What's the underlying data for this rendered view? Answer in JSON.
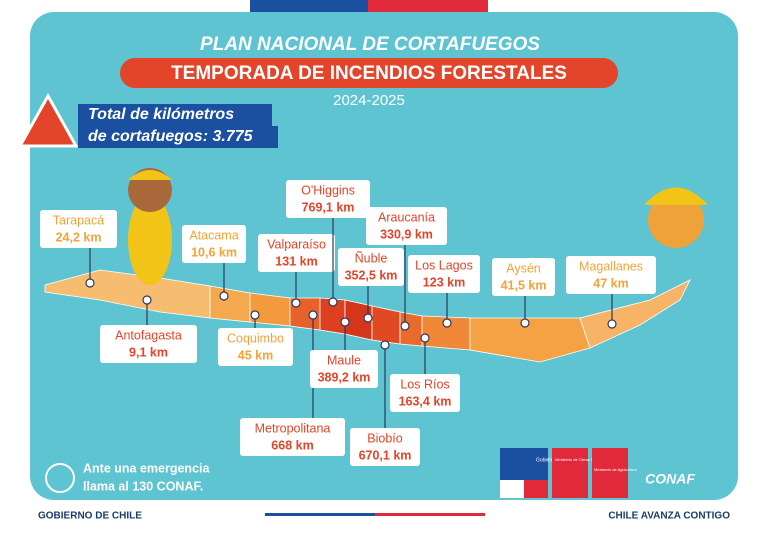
{
  "header": {
    "title": "PLAN NACIONAL DE CORTAFUEGOS",
    "subtitle": "TEMPORADA DE INCENDIOS FORESTALES",
    "season": "2024-2025"
  },
  "total": {
    "line1": "Total de kilómetros",
    "line2": "de cortafuegos: 3.775"
  },
  "regions": [
    {
      "name": "Tarapacá",
      "value": "24,2 km",
      "color": "#f2a43a"
    },
    {
      "name": "Antofagasta",
      "value": "9,1 km",
      "color": "#e2452a"
    },
    {
      "name": "Atacama",
      "value": "10,6 km",
      "color": "#f2a43a"
    },
    {
      "name": "Coquimbo",
      "value": "45 km",
      "color": "#f2a43a"
    },
    {
      "name": "Valparaíso",
      "value": "131 km",
      "color": "#e2452a"
    },
    {
      "name": "O'Higgins",
      "value": "769,1 km",
      "color": "#e2452a"
    },
    {
      "name": "Metropolitana",
      "value": "668 km",
      "color": "#e2452a"
    },
    {
      "name": "Maule",
      "value": "389,2 km",
      "color": "#e2452a"
    },
    {
      "name": "Ñuble",
      "value": "352,5 km",
      "color": "#e2452a"
    },
    {
      "name": "Biobío",
      "value": "670,1 km",
      "color": "#e2452a"
    },
    {
      "name": "Araucanía",
      "value": "330,9 km",
      "color": "#e2452a"
    },
    {
      "name": "Los Lagos",
      "value": "123 km",
      "color": "#e2452a"
    },
    {
      "name": "Los Ríos",
      "value": "163,4 km",
      "color": "#e2452a"
    },
    {
      "name": "Aysén",
      "value": "41,5 km",
      "color": "#f2a43a"
    },
    {
      "name": "Magallanes",
      "value": "47 km",
      "color": "#f2a43a"
    }
  ],
  "emergency": {
    "line1": "Ante una emergencia",
    "line2": "llama al 130 CONAF."
  },
  "logos": {
    "gobierno": "Gobierno de Chile",
    "mop": "Ministerio de Obras Públicas",
    "minagri": "Ministerio de Agricultura",
    "conaf": "CONAF"
  },
  "footer": {
    "left": "GOBIERNO DE CHILE",
    "right": "CHILE AVANZA CONTIGO"
  }
}
